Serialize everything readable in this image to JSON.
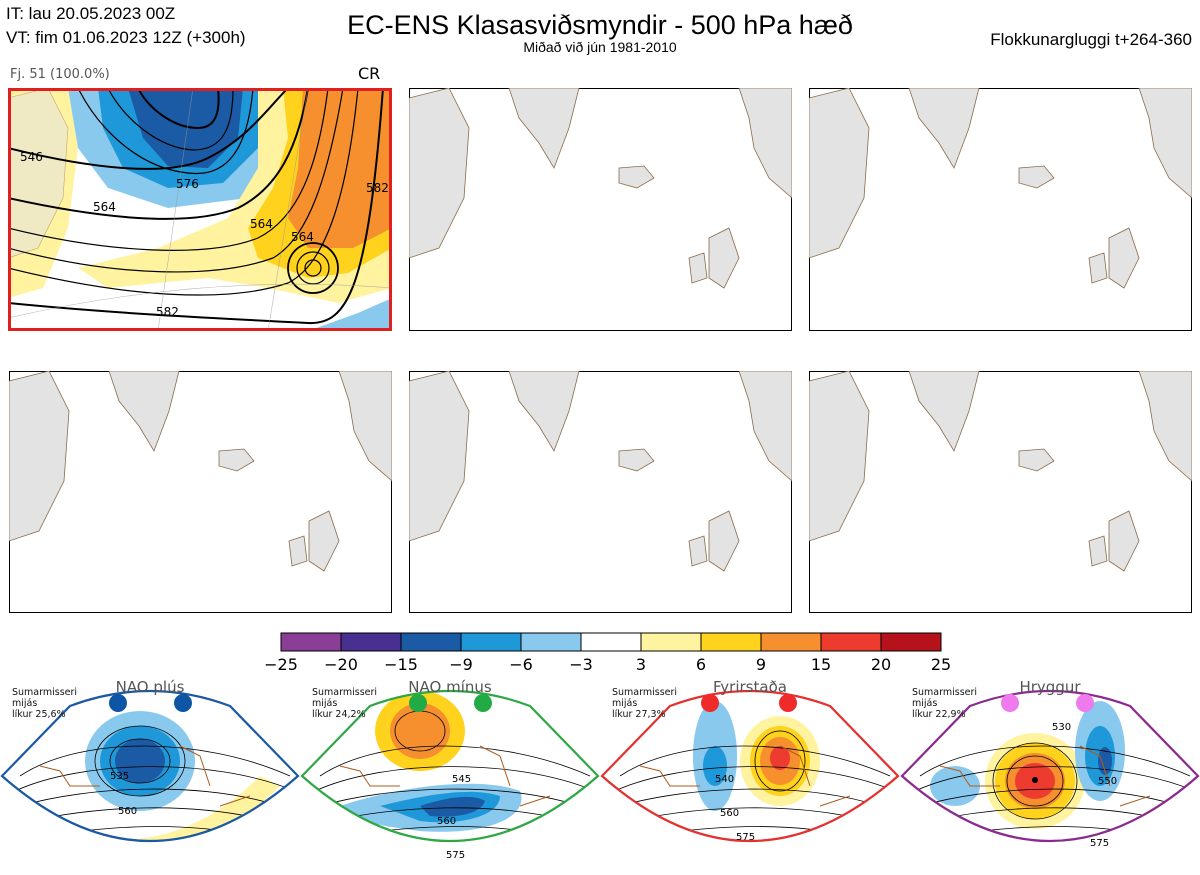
{
  "header": {
    "initial_time": "IT: lau 20.05.2023 00Z",
    "valid_time": "VT: fim 01.06.2023 12Z  (+300h)",
    "title": "EC-ENS Klasasviðsmyndir - 500 hPa hæð",
    "subtitle": "Miðað við jún 1981-2010",
    "window": "Flokkunargluggi t+264-360"
  },
  "panels": [
    {
      "member_label": "Fj. 51 (100.0%)",
      "regime_code": "CR",
      "highlighted": true,
      "contour_labels": [
        "546",
        "576",
        "564",
        "564",
        "564",
        "582",
        "582"
      ]
    },
    {
      "highlighted": false
    },
    {
      "highlighted": false
    },
    {
      "highlighted": false
    },
    {
      "highlighted": false
    },
    {
      "highlighted": false
    }
  ],
  "colorbar": {
    "ticks": [
      "−25",
      "−20",
      "−15",
      "−9",
      "−6",
      "−3",
      "3",
      "6",
      "9",
      "15",
      "20",
      "25"
    ],
    "colors": [
      "#8b3e98",
      "#47308f",
      "#1b5aa5",
      "#1e98d8",
      "#8ac9ee",
      "#ffffff",
      "#fff3a0",
      "#ffd21e",
      "#f6902e",
      "#ee3b30",
      "#b5121b"
    ]
  },
  "regimes": [
    {
      "name": "NAO plús",
      "note": [
        "Sumarmisseri",
        "mijás",
        "líkur 25,6%"
      ],
      "border_color": "#1c59a3",
      "dot_color": "#0d55a5",
      "contour_labels": [
        "535",
        "560"
      ]
    },
    {
      "name": "NAO mínus",
      "note": [
        "Sumarmisseri",
        "mijás",
        "líkur 24,2%"
      ],
      "border_color": "#2fa745",
      "dot_color": "#22aa45",
      "contour_labels": [
        "545",
        "560",
        "575"
      ]
    },
    {
      "name": "Fyrirstaða",
      "note": [
        "Sumarmisseri",
        "mijás",
        "líkur 27,3%"
      ],
      "border_color": "#e53030",
      "dot_color": "#ee2a2a",
      "contour_labels": [
        "540",
        "560",
        "575"
      ]
    },
    {
      "name": "Hryggur",
      "note": [
        "Sumarmisseri",
        "mijás",
        "líkur 22,9%"
      ],
      "border_color": "#8a2a8e",
      "dot_color": "#ee7aee",
      "contour_labels": [
        "530",
        "550",
        "575"
      ]
    }
  ]
}
